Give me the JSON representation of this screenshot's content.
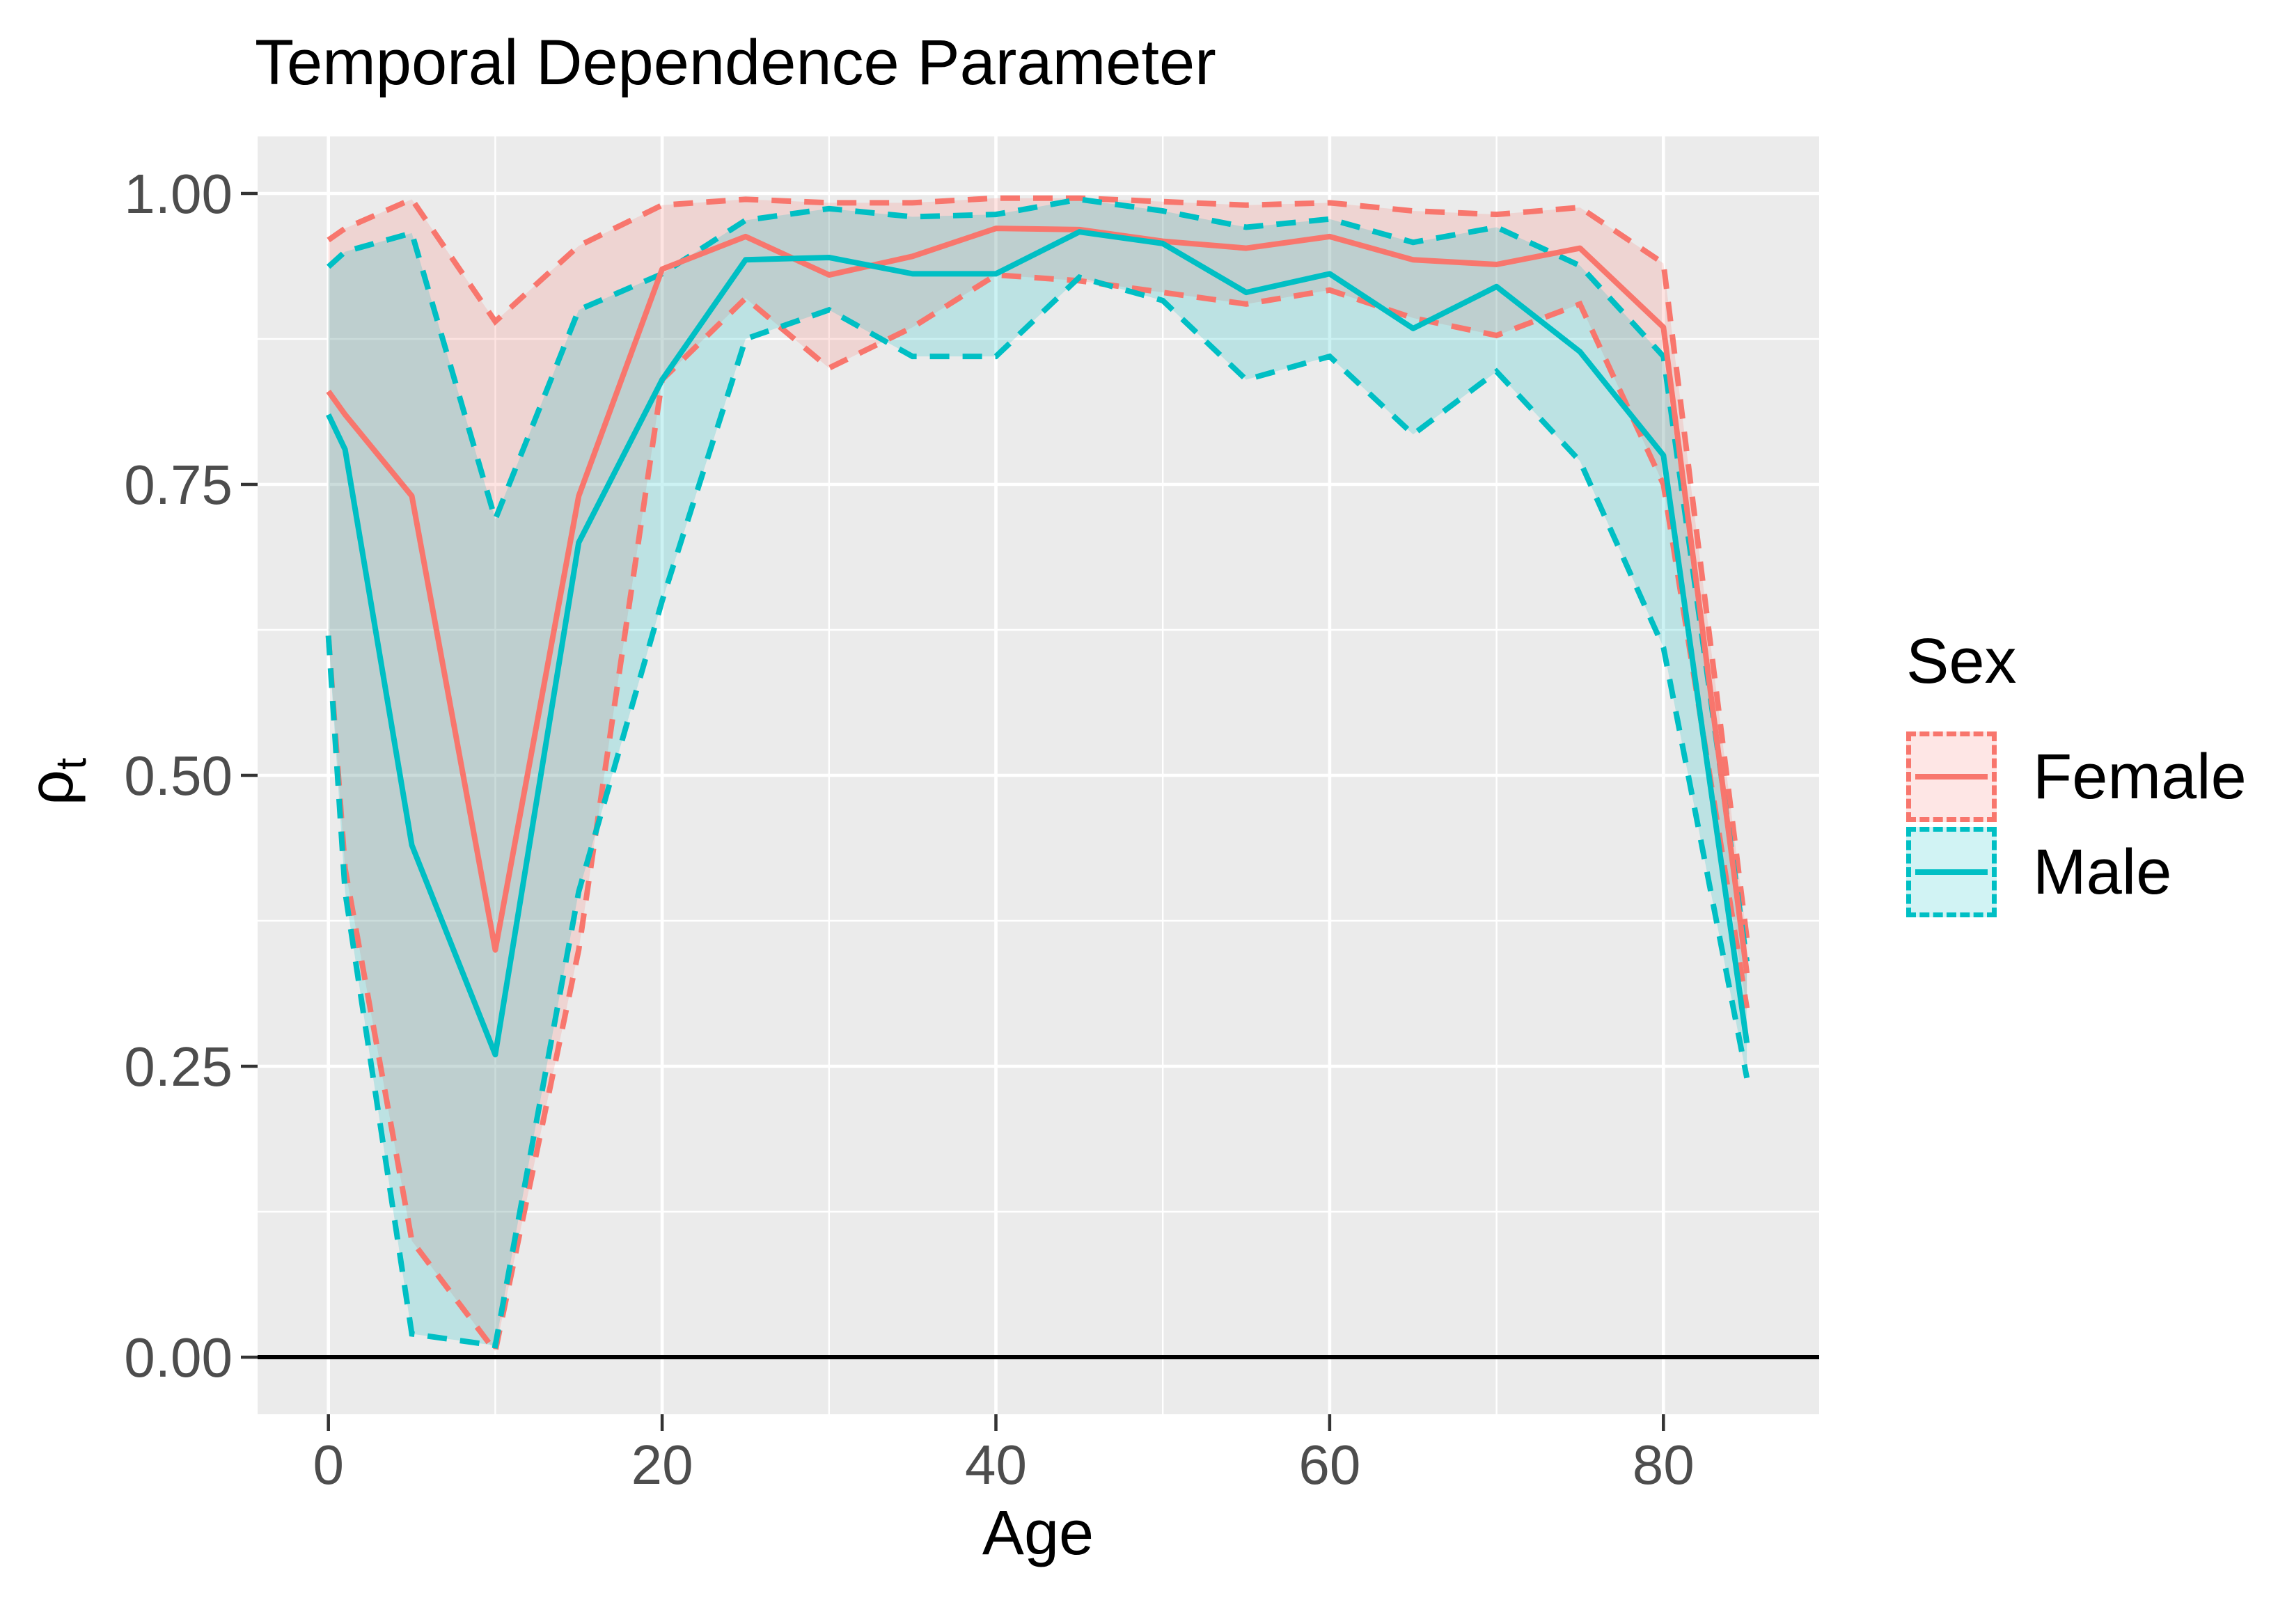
{
  "title": "Temporal Dependence Parameter",
  "x_axis": {
    "label": "Age",
    "tick_labels": [
      "0",
      "20",
      "40",
      "60",
      "80"
    ],
    "tick_values": [
      0,
      20,
      40,
      60,
      80
    ],
    "minor_values": [
      10,
      30,
      50,
      70
    ]
  },
  "y_axis": {
    "label_base": "ρ",
    "label_sub": "t",
    "tick_labels": [
      "1.00",
      "0.75",
      "0.50",
      "0.25",
      "0.00"
    ],
    "tick_values": [
      1.0,
      0.75,
      0.5,
      0.25,
      0.0
    ],
    "minor_values": [
      0.875,
      0.625,
      0.375,
      0.125
    ]
  },
  "legend": {
    "title": "Sex",
    "items": [
      {
        "label": "Female",
        "color": "#F8766D"
      },
      {
        "label": "Male",
        "color": "#00BFC4"
      }
    ]
  },
  "style": {
    "panel_bg": "#EBEBEB",
    "grid_color": "#FFFFFF",
    "tick_label_color": "#4D4D4D",
    "tick_mark_color": "#333333",
    "baseline_color": "#000000",
    "band_opacity": 0.2
  },
  "chart_data": {
    "type": "line",
    "title": "Temporal Dependence Parameter",
    "xlabel": "Age",
    "ylabel": "ρt",
    "xlim": [
      0,
      85
    ],
    "ylim": [
      0,
      1
    ],
    "grid": true,
    "legend_position": "right",
    "baseline_y": 0,
    "x": [
      0,
      1,
      5,
      10,
      15,
      20,
      25,
      30,
      35,
      40,
      45,
      50,
      55,
      60,
      65,
      70,
      75,
      80,
      85
    ],
    "groups": [
      {
        "name": "Female",
        "color": "#F8766D",
        "mean": [
          0.83,
          0.81,
          0.74,
          0.35,
          0.74,
          0.935,
          0.963,
          0.93,
          0.946,
          0.97,
          0.969,
          0.959,
          0.953,
          0.963,
          0.943,
          0.939,
          0.953,
          0.885,
          0.33
        ],
        "upper": [
          0.96,
          0.97,
          0.995,
          0.89,
          0.955,
          0.99,
          0.995,
          0.992,
          0.992,
          0.996,
          0.996,
          0.993,
          0.99,
          0.992,
          0.985,
          0.982,
          0.988,
          0.94,
          0.36
        ],
        "lower": [
          0.62,
          0.42,
          0.1,
          0.005,
          0.35,
          0.84,
          0.91,
          0.85,
          0.885,
          0.93,
          0.925,
          0.915,
          0.905,
          0.917,
          0.893,
          0.878,
          0.905,
          0.75,
          0.3
        ]
      },
      {
        "name": "Male",
        "color": "#00BFC4",
        "mean": [
          0.81,
          0.78,
          0.44,
          0.26,
          0.7,
          0.84,
          0.943,
          0.945,
          0.931,
          0.931,
          0.967,
          0.957,
          0.915,
          0.931,
          0.884,
          0.92,
          0.864,
          0.775,
          0.27
        ],
        "upper": [
          0.937,
          0.95,
          0.966,
          0.72,
          0.9,
          0.931,
          0.977,
          0.987,
          0.98,
          0.982,
          0.995,
          0.985,
          0.971,
          0.978,
          0.958,
          0.971,
          0.938,
          0.86,
          0.34
        ],
        "lower": [
          0.62,
          0.4,
          0.02,
          0.01,
          0.4,
          0.65,
          0.875,
          0.9,
          0.86,
          0.86,
          0.928,
          0.908,
          0.84,
          0.86,
          0.793,
          0.847,
          0.77,
          0.61,
          0.24
        ]
      }
    ]
  }
}
